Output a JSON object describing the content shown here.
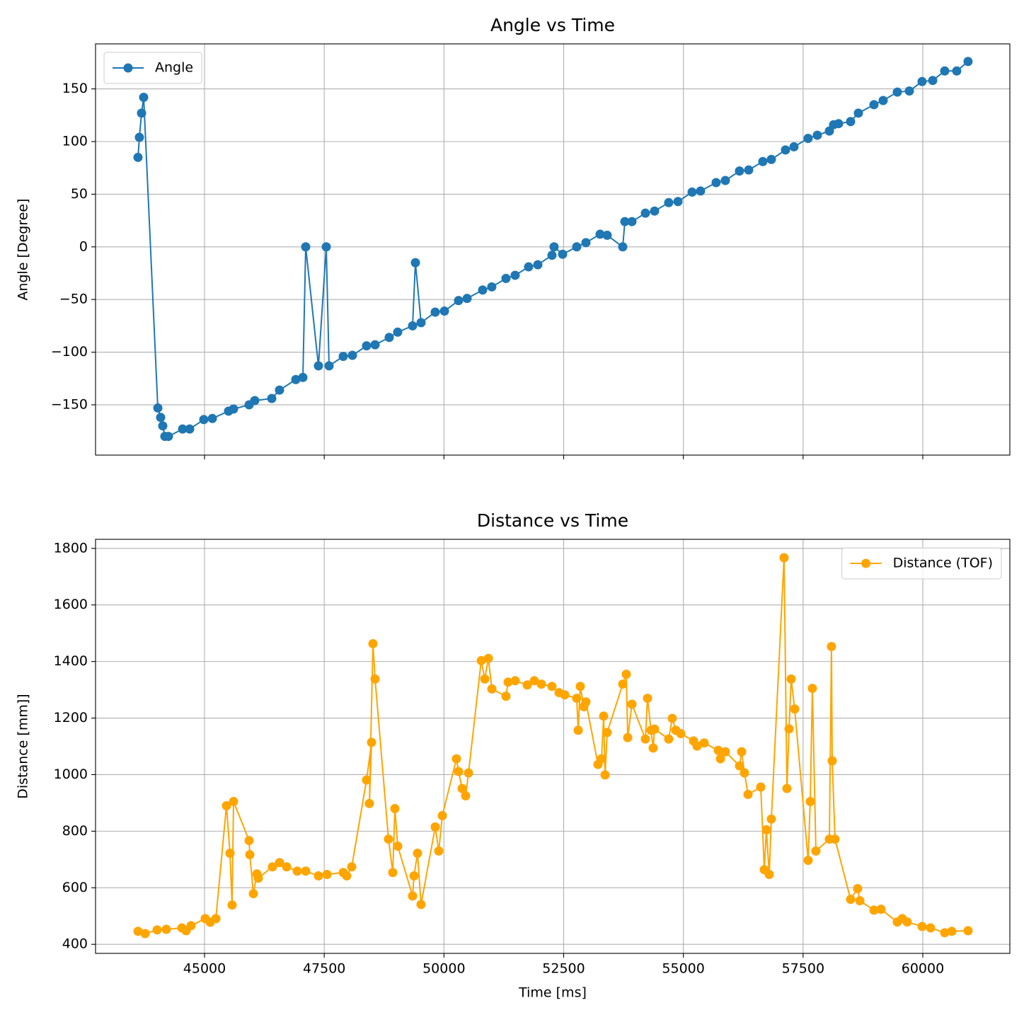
{
  "chart_data": [
    {
      "type": "line",
      "title": "Angle vs Time",
      "y_label": "Angle [Degree]",
      "grid": true,
      "legend": "upper left",
      "show_xtick_labels": false,
      "xlim": [
        42724,
        61818
      ],
      "ylim": [
        -197.75,
        192.75
      ],
      "xticks": [
        45000,
        47500,
        50000,
        52500,
        55000,
        57500,
        60000
      ],
      "yticks": [
        {
          "value": -150,
          "label": "−150"
        },
        {
          "value": -100,
          "label": "−100"
        },
        {
          "value": -50,
          "label": "−50"
        },
        0,
        50,
        100,
        150
      ],
      "x": [
        43611,
        43640,
        43685,
        43729,
        44025,
        44084,
        44128,
        44172,
        44246,
        44542,
        44690,
        44985,
        45163,
        45502,
        45606,
        45931,
        46049,
        46404,
        46566,
        46906,
        47054,
        47113,
        47379,
        47542,
        47601,
        47897,
        48089,
        48384,
        48562,
        48857,
        49034,
        49345,
        49404,
        49522,
        49818,
        50010,
        50305,
        50483,
        50808,
        50999,
        51295,
        51487,
        51768,
        51960,
        52256,
        52300,
        52478,
        52773,
        52965,
        53261,
        53409,
        53734,
        53778,
        53926,
        54207,
        54399,
        54694,
        54887,
        55182,
        55359,
        55684,
        55876,
        56172,
        56364,
        56659,
        56837,
        57133,
        57310,
        57605,
        57797,
        58049,
        58137,
        58241,
        58492,
        58655,
        58980,
        59172,
        59468,
        59719,
        59985,
        60207,
        60458,
        60709,
        60945
      ],
      "series": [
        {
          "name": "Angle",
          "color": "#1f77b4",
          "values": [
            85,
            104,
            127,
            142,
            -153,
            -162,
            -170,
            -180,
            -180,
            -173,
            -173,
            -164,
            -163,
            -156,
            -154,
            -150,
            -146,
            -144,
            -136,
            -126,
            -124,
            0,
            -113,
            0,
            -113,
            -104,
            -103,
            -94,
            -93,
            -86,
            -81,
            -75,
            -15,
            -72,
            -62,
            -61,
            -51,
            -49,
            -41,
            -38,
            -30,
            -27,
            -19,
            -17,
            -8,
            0,
            -7,
            0,
            4,
            12,
            11,
            0,
            24,
            24,
            32,
            34,
            42,
            43,
            52,
            53,
            61,
            63,
            72,
            73,
            81,
            83,
            92,
            95,
            103,
            106,
            110,
            116,
            117,
            119,
            127,
            135,
            139,
            147,
            148,
            157,
            158,
            167,
            167,
            176
          ]
        }
      ]
    },
    {
      "type": "line",
      "title": "Distance vs Time",
      "x_label": "Time [ms]",
      "y_label": "Distance [mm]]",
      "grid": true,
      "legend": "upper right",
      "show_xtick_labels": true,
      "xlim": [
        42724,
        61818
      ],
      "ylim": [
        368,
        1832
      ],
      "xticks": [
        45000,
        47500,
        50000,
        52500,
        55000,
        57500,
        60000
      ],
      "yticks": [
        400,
        600,
        800,
        1000,
        1200,
        1400,
        1600,
        1800
      ],
      "x": [
        43611,
        43759,
        44010,
        44202,
        44527,
        44616,
        44719,
        45015,
        45118,
        45237,
        45458,
        45532,
        45576,
        45606,
        45931,
        45946,
        46020,
        46094,
        46123,
        46419,
        46567,
        46715,
        46936,
        47113,
        47379,
        47557,
        47896,
        47970,
        48074,
        48384,
        48488,
        48443,
        48517,
        48562,
        48842,
        48931,
        48975,
        49035,
        49345,
        49375,
        49448,
        49522,
        49818,
        49892,
        49966,
        50261,
        50305,
        50379,
        50453,
        50513,
        50779,
        50853,
        50927,
        51001,
        51295,
        51340,
        51488,
        51739,
        51887,
        52034,
        52256,
        52404,
        52522,
        52773,
        52803,
        52847,
        52921,
        52965,
        53217,
        53291,
        53335,
        53365,
        53409,
        53734,
        53808,
        53838,
        53926,
        54207,
        54251,
        54325,
        54369,
        54399,
        54694,
        54768,
        54842,
        54946,
        55212,
        55286,
        55434,
        55729,
        55774,
        55877,
        56172,
        56217,
        56276,
        56350,
        56616,
        56690,
        56734,
        56793,
        56837,
        57103,
        57163,
        57207,
        57251,
        57325,
        57606,
        57650,
        57694,
        57768,
        58049,
        58093,
        58108,
        58167,
        58492,
        58640,
        58685,
        58980,
        59127,
        59467,
        59571,
        59674,
        59985,
        60162,
        60458,
        60606,
        60945
      ],
      "series": [
        {
          "name": "Distance (TOF)",
          "color": "#ffa500",
          "values": [
            446,
            438,
            451,
            453,
            458,
            448,
            466,
            491,
            478,
            491,
            890,
            722,
            539,
            905,
            767,
            717,
            579,
            649,
            634,
            674,
            689,
            674,
            659,
            659,
            642,
            647,
            654,
            642,
            674,
            981,
            1114,
            898,
            1463,
            1338,
            772,
            654,
            880,
            747,
            571,
            642,
            722,
            541,
            815,
            730,
            855,
            1056,
            1011,
            951,
            925,
            1006,
            1403,
            1338,
            1411,
            1303,
            1277,
            1327,
            1332,
            1317,
            1332,
            1320,
            1312,
            1290,
            1282,
            1270,
            1157,
            1312,
            1240,
            1257,
            1036,
            1056,
            1207,
            999,
            1149,
            1320,
            1355,
            1131,
            1249,
            1126,
            1270,
            1157,
            1094,
            1161,
            1126,
            1199,
            1157,
            1145,
            1119,
            1101,
            1112,
            1086,
            1056,
            1081,
            1031,
            1081,
            1006,
            930,
            956,
            664,
            805,
            647,
            843,
            1767,
            951,
            1162,
            1338,
            1232,
            697,
            905,
            1305,
            730,
            772,
            1453,
            1049,
            772,
            559,
            597,
            554,
            521,
            524,
            479,
            491,
            479,
            463,
            458,
            441,
            446,
            448
          ]
        }
      ]
    }
  ]
}
